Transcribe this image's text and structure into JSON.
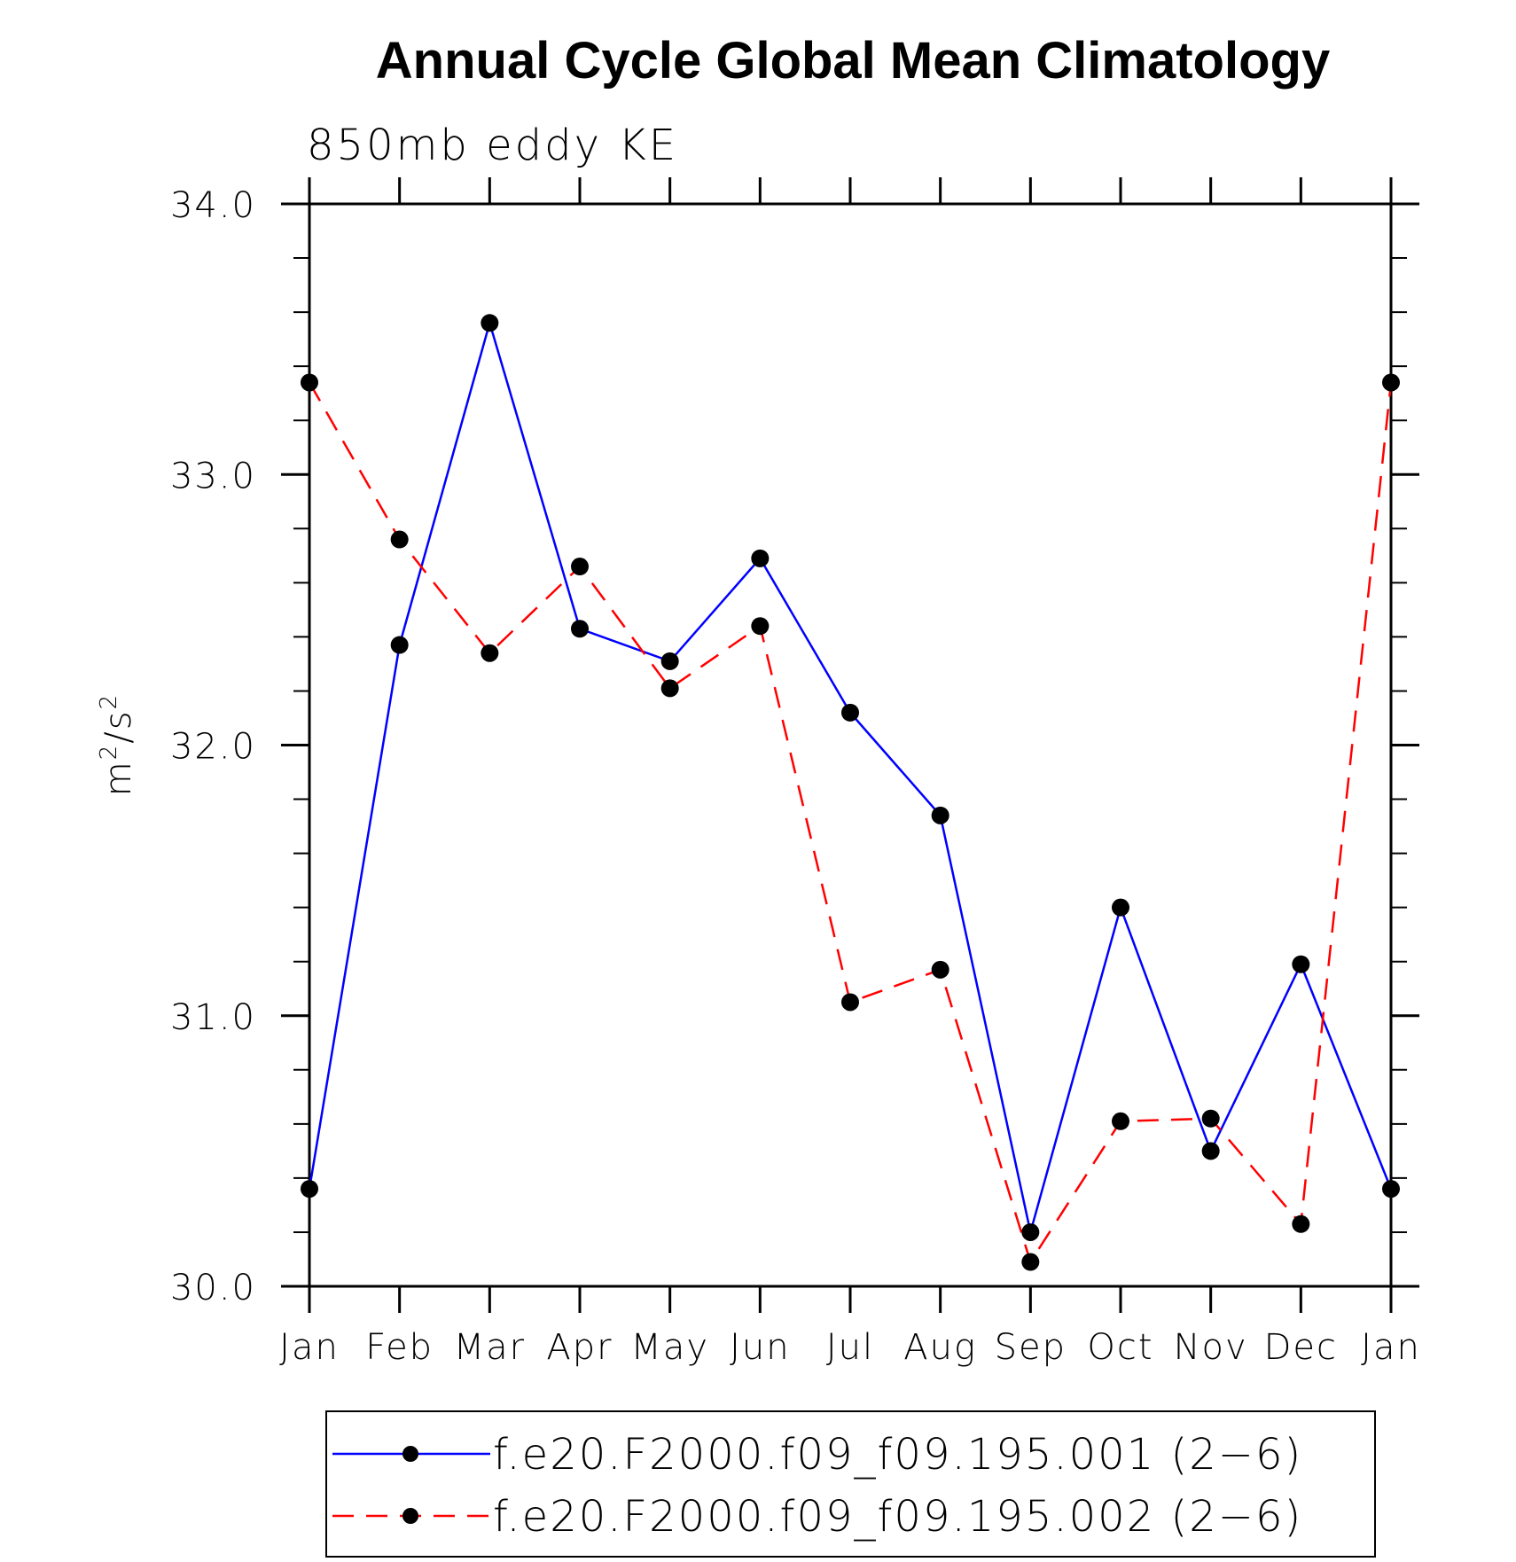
{
  "chart_data": {
    "type": "line",
    "title": "Annual Cycle Global Mean Climatology",
    "subtitle": "850mb eddy KE",
    "ylabel_base": "m",
    "ylabel_sup1": "2",
    "ylabel_mid": "/s",
    "ylabel_sup2": "2",
    "categories": [
      "Jan",
      "Feb",
      "Mar",
      "Apr",
      "May",
      "Jun",
      "Jul",
      "Aug",
      "Sep",
      "Oct",
      "Nov",
      "Dec",
      "Jan"
    ],
    "ylim": [
      30.0,
      34.0
    ],
    "yticks": [
      "30.0",
      "31.0",
      "32.0",
      "33.0",
      "34.0"
    ],
    "yminor_step": 0.2,
    "grid": false,
    "legend_position": "bottom",
    "series": [
      {
        "name": "f.e20.F2000.f09_f09.195.001 (2−6)",
        "color": "#0000ff",
        "dash": "solid",
        "marker": "filled-circle",
        "values": [
          30.36,
          32.37,
          33.56,
          32.43,
          32.31,
          32.69,
          32.12,
          31.74,
          30.2,
          31.4,
          30.5,
          31.19,
          30.36
        ]
      },
      {
        "name": "f.e20.F2000.f09_f09.195.002 (2−6)",
        "color": "#ff0000",
        "dash": "dashed",
        "marker": "filled-circle",
        "values": [
          33.34,
          32.76,
          32.34,
          32.66,
          32.21,
          32.44,
          31.05,
          31.17,
          30.09,
          30.61,
          30.62,
          30.23,
          33.34
        ]
      }
    ]
  }
}
